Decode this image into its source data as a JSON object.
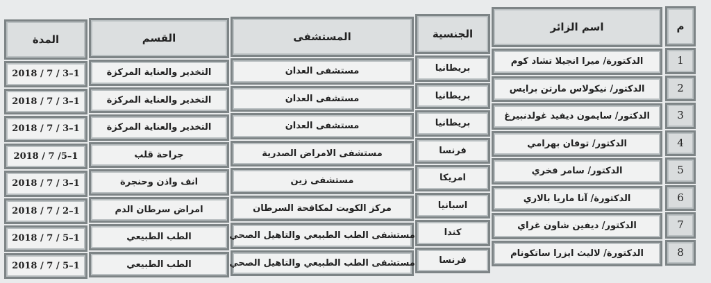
{
  "headers": {
    "number": "م",
    "visitor_name": "اسم الزائر",
    "nationality": "الجنسية",
    "hospital": "المستشفى",
    "department": "القسم",
    "duration": "المدة"
  },
  "rows": [
    {
      "number": "1",
      "visitor_name": "الدكتورة/ ميرا انجيلا تشاد كوم",
      "nationality": "بريطانيا",
      "hospital": "مستشفى العدان",
      "department": "التخدير والعناية المركزة",
      "duration": "2018 / 7 / 3–1"
    },
    {
      "number": "2",
      "visitor_name": "الدكتور/ نيكولاس مارتن برايس",
      "nationality": "بريطانيا",
      "hospital": "مستشفى العدان",
      "department": "التخدير والعناية المركزة",
      "duration": "2018 / 7 / 3–1"
    },
    {
      "number": "3",
      "visitor_name": "الدكتور/ سايمون ديفيد غولدنبيرغ",
      "nationality": "بريطانيا",
      "hospital": "مستشفى العدان",
      "department": "التخدير والعناية المركزة",
      "duration": "2018 / 7 / 3–1"
    },
    {
      "number": "4",
      "visitor_name": "الدكتور/ توفان بهرامي",
      "nationality": "فرنسا",
      "hospital": "مستشفى الامراض الصدرية",
      "department": "جراحة قلب",
      "duration": "2018 / 7 /5–1"
    },
    {
      "number": "5",
      "visitor_name": "الدكتور/ سامر فخري",
      "nationality": "امريكا",
      "hospital": "مستشفى زين",
      "department": "انف واذن وحنجرة",
      "duration": "2018 / 7 / 3–1"
    },
    {
      "number": "6",
      "visitor_name": "الدكتورة/ آنا ماريا بالاري",
      "nationality": "اسبانيا",
      "hospital": "مركز الكويت لمكافحة السرطان",
      "department": "امراض سرطان الدم",
      "duration": "2018 / 7 / 2–1"
    },
    {
      "number": "7",
      "visitor_name": "الدكتور/ ديفين شاون غراي",
      "nationality": "كندا",
      "hospital": "مستشفى الطب الطبيعي والتاهيل الصحي",
      "department": "الطب الطبيعي",
      "duration": "2018 / 7 / 5–1"
    },
    {
      "number": "8",
      "visitor_name": "الدكتورة/ لاليث ايزرا ساتكونام",
      "nationality": "فرنسا",
      "hospital": "مستشفى الطب الطبيعي والتاهيل الصحي",
      "department": "الطب الطبيعي",
      "duration": "2018 / 7 / 5–1"
    }
  ]
}
